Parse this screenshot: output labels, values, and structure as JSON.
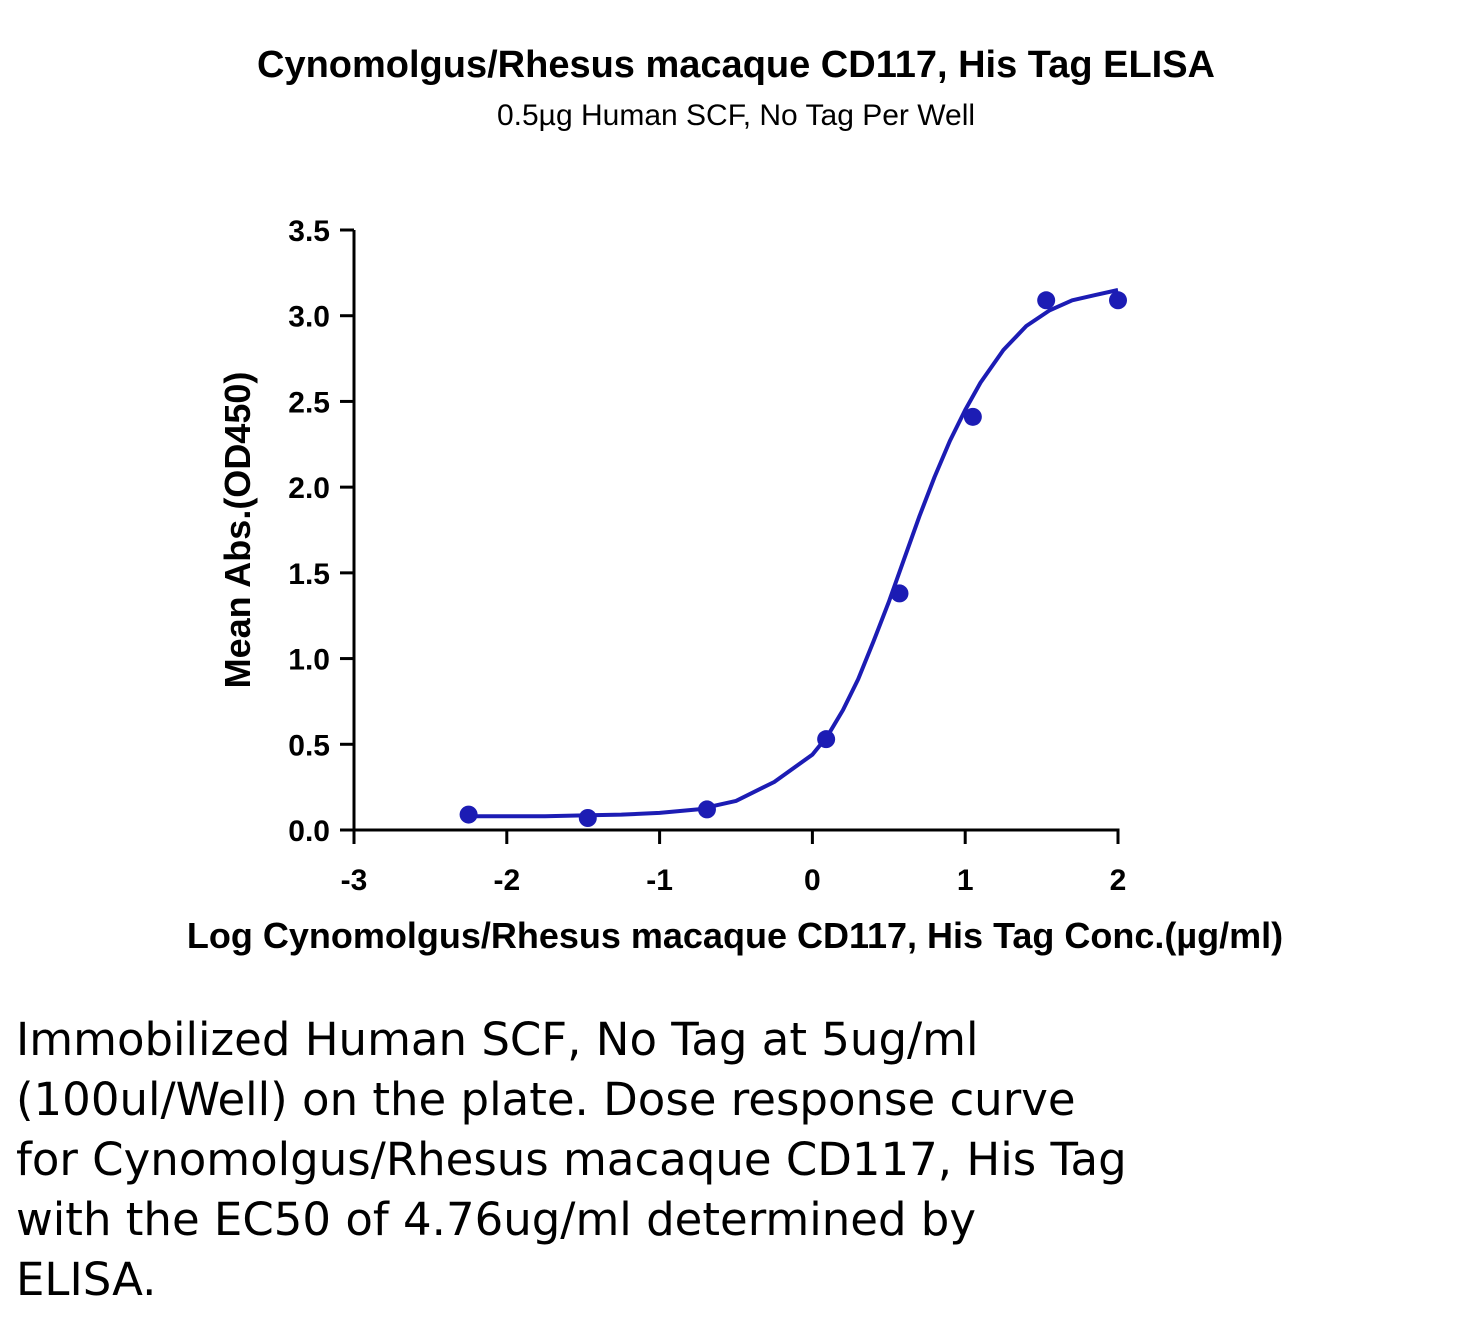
{
  "chart_data": {
    "type": "scatter",
    "title": "Cynomolgus/Rhesus macaque CD117, His Tag ELISA",
    "subtitle": "0.5µg Human SCF, No Tag Per Well",
    "xlabel": "Log Cynomolgus/Rhesus macaque CD117, His Tag Conc.(µg/ml)",
    "ylabel": "Mean Abs.(OD450)",
    "xlim": [
      -3,
      2
    ],
    "ylim": [
      0,
      3.5
    ],
    "x_ticks": [
      "-3",
      "-2",
      "-1",
      "0",
      "1",
      "2"
    ],
    "y_ticks": [
      "0.0",
      "0.5",
      "1.0",
      "1.5",
      "2.0",
      "2.5",
      "3.0",
      "3.5"
    ],
    "grid": false,
    "series": [
      {
        "x": [
          -2.25,
          -1.47,
          -0.69,
          0.09,
          0.57,
          1.05,
          1.53,
          2.0
        ],
        "y": [
          0.09,
          0.07,
          0.12,
          0.53,
          1.38,
          2.41,
          3.09,
          3.09
        ],
        "fit": "4PL",
        "fit_curve": {
          "x": [
            -2.25,
            -2.0,
            -1.75,
            -1.5,
            -1.25,
            -1.0,
            -0.75,
            -0.5,
            -0.25,
            0.0,
            0.1,
            0.2,
            0.3,
            0.4,
            0.5,
            0.6,
            0.7,
            0.8,
            0.9,
            1.0,
            1.1,
            1.25,
            1.4,
            1.55,
            1.7,
            1.85,
            2.0
          ],
          "y": [
            0.08,
            0.08,
            0.08,
            0.085,
            0.09,
            0.1,
            0.12,
            0.17,
            0.28,
            0.44,
            0.55,
            0.7,
            0.88,
            1.1,
            1.33,
            1.58,
            1.83,
            2.06,
            2.27,
            2.45,
            2.61,
            2.8,
            2.94,
            3.03,
            3.09,
            3.12,
            3.15
          ]
        }
      }
    ],
    "colors": {
      "series": "#1c1cb4",
      "axis": "#000000"
    }
  },
  "caption": [
    "Immobilized Human SCF, No Tag at 5ug/ml",
    "(100ul/Well) on the plate. Dose response curve",
    "for Cynomolgus/Rhesus macaque CD117, His Tag",
    "with the EC50 of 4.76ug/ml determined by",
    "ELISA."
  ]
}
